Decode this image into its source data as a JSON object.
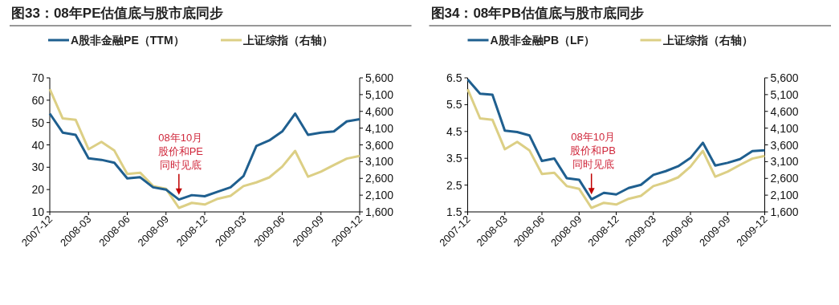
{
  "chart_data": [
    {
      "type": "line",
      "title": "图33：08年PE估值底与股市底同步",
      "legend": "top",
      "grid": false,
      "categories": [
        "2007-12",
        null,
        null,
        "2008-03",
        null,
        null,
        "2008-06",
        null,
        null,
        "2008-09",
        null,
        null,
        "2008-12",
        null,
        null,
        "2009-03",
        null,
        null,
        "2009-06",
        null,
        null,
        "2009-09",
        null,
        null,
        "2009-12"
      ],
      "series": [
        {
          "name": "A股非金融PE（TTM）",
          "color": "#1f5f8f",
          "values": [
            54,
            45.5,
            44.5,
            34,
            33.3,
            32,
            25,
            25.5,
            21,
            20,
            15.5,
            17.5,
            17,
            19,
            21,
            26,
            39.5,
            42,
            46,
            54,
            44.5,
            45.5,
            46,
            50.5,
            51.5
          ]
        },
        {
          "name": "上证综指（右轴）",
          "color": "#dccf85",
          "axis": "y2",
          "values": [
            5260,
            4390,
            4350,
            3470,
            3690,
            3430,
            2730,
            2770,
            2370,
            2290,
            1720,
            1870,
            1820,
            1990,
            2080,
            2370,
            2480,
            2630,
            2950,
            3420,
            2650,
            2800,
            3000,
            3190,
            3270
          ]
        }
      ],
      "ylim": [
        10,
        70
      ],
      "yticks": [
        10,
        20,
        30,
        40,
        50,
        60,
        70
      ],
      "y2lim": [
        1600,
        5600
      ],
      "y2ticks": [
        {
          "value": 1600,
          "label": "1,600"
        },
        {
          "value": 2100,
          "label": "2,100"
        },
        {
          "value": 2600,
          "label": "2,600"
        },
        {
          "value": 3100,
          "label": "3,100"
        },
        {
          "value": 3600,
          "label": "3,600"
        },
        {
          "value": 4100,
          "label": "4,100"
        },
        {
          "value": 4600,
          "label": "4,600"
        },
        {
          "value": 5100,
          "label": "5,100"
        },
        {
          "value": 5600,
          "label": "5,600"
        }
      ],
      "annotations": [
        "08年10月",
        "股价和PE",
        "同时见底"
      ]
    },
    {
      "type": "line",
      "title": "图34：08年PB估值底与股市底同步",
      "legend": "top",
      "grid": false,
      "categories": [
        "2007-12",
        null,
        null,
        "2008-03",
        null,
        null,
        "2008-06",
        null,
        null,
        "2008-09",
        null,
        null,
        "2008-12",
        null,
        null,
        "2009-03",
        null,
        null,
        "2009-06",
        null,
        null,
        "2009-09",
        null,
        null,
        "2009-12"
      ],
      "series": [
        {
          "name": "A股非金融PB（LF）",
          "color": "#1f5f8f",
          "values": [
            6.44,
            5.91,
            5.87,
            4.53,
            4.48,
            4.35,
            3.4,
            3.49,
            2.76,
            2.7,
            1.97,
            2.21,
            2.15,
            2.39,
            2.51,
            2.88,
            3.02,
            3.2,
            3.51,
            4.08,
            3.23,
            3.33,
            3.47,
            3.77,
            3.8
          ]
        },
        {
          "name": "上证综指（右轴）",
          "color": "#dccf85",
          "axis": "y2",
          "values": [
            5260,
            4390,
            4350,
            3470,
            3690,
            3430,
            2730,
            2770,
            2370,
            2290,
            1720,
            1870,
            1820,
            1990,
            2080,
            2370,
            2480,
            2630,
            2950,
            3420,
            2650,
            2800,
            3000,
            3190,
            3270
          ]
        }
      ],
      "ylim": [
        1.5,
        6.5
      ],
      "yticks": [
        1.5,
        2.5,
        3.5,
        4.5,
        5.5,
        6.5
      ],
      "y2lim": [
        1600,
        5600
      ],
      "y2ticks": [
        {
          "value": 1600,
          "label": "1,600"
        },
        {
          "value": 2100,
          "label": "2,100"
        },
        {
          "value": 2600,
          "label": "2,600"
        },
        {
          "value": 3100,
          "label": "3,100"
        },
        {
          "value": 3600,
          "label": "3,600"
        },
        {
          "value": 4100,
          "label": "4,100"
        },
        {
          "value": 4600,
          "label": "4,600"
        },
        {
          "value": 5100,
          "label": "5,100"
        },
        {
          "value": 5600,
          "label": "5,600"
        }
      ],
      "annotations": [
        "08年10月",
        "股价和PB",
        "同时见底"
      ]
    }
  ]
}
